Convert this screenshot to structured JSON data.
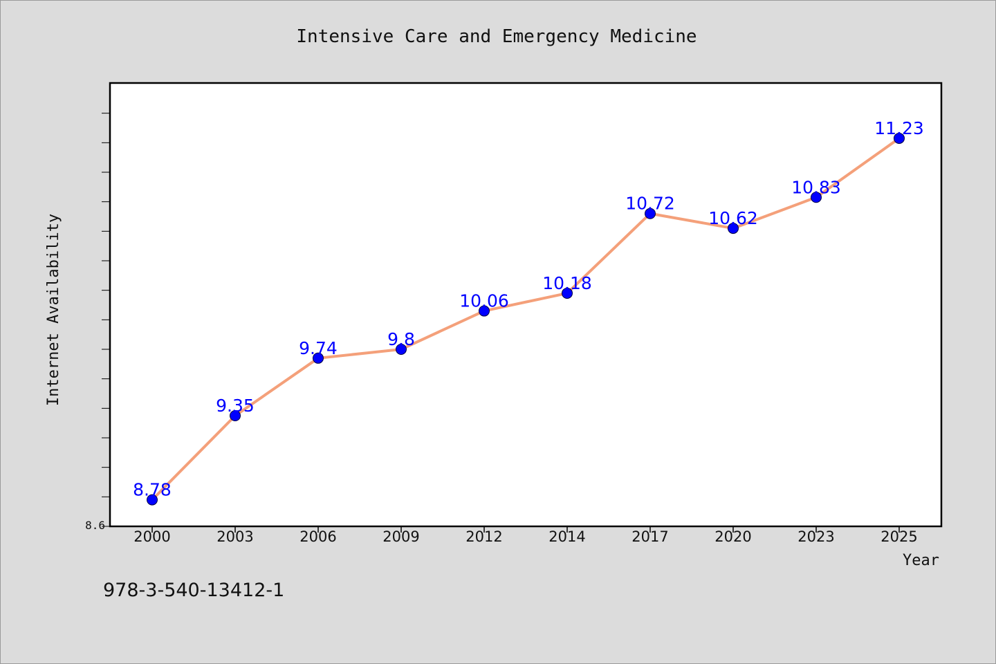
{
  "chart_data": {
    "type": "line",
    "title": "Intensive Care and Emergency Medicine",
    "xlabel": "Year",
    "ylabel": "Internet Availability",
    "categories": [
      "2000",
      "2003",
      "2006",
      "2009",
      "2012",
      "2014",
      "2017",
      "2020",
      "2023",
      "2025"
    ],
    "series": [
      {
        "values": [
          8.78,
          9.35,
          9.74,
          9.8,
          10.06,
          10.18,
          10.72,
          10.62,
          10.83,
          11.23
        ],
        "line_color": "#f4a07a",
        "marker_color": "#0000ff"
      }
    ],
    "ylim": [
      8.6,
      11.6
    ],
    "y_tick_labels": [
      "8.6"
    ],
    "data_labels": [
      "8.78",
      "9.35",
      "9.74",
      "9.8",
      "10.06",
      "10.18",
      "10.72",
      "10.62",
      "10.83",
      "11.23"
    ],
    "grid": false,
    "legend": "none"
  },
  "footer": {
    "isbn": "978-3-540-13412-1"
  },
  "colors": {
    "background": "#dcdcdc",
    "plot_background": "#ffffff",
    "line": "#f4a07a",
    "marker": "#0000ff",
    "data_label": "#0000ff"
  }
}
